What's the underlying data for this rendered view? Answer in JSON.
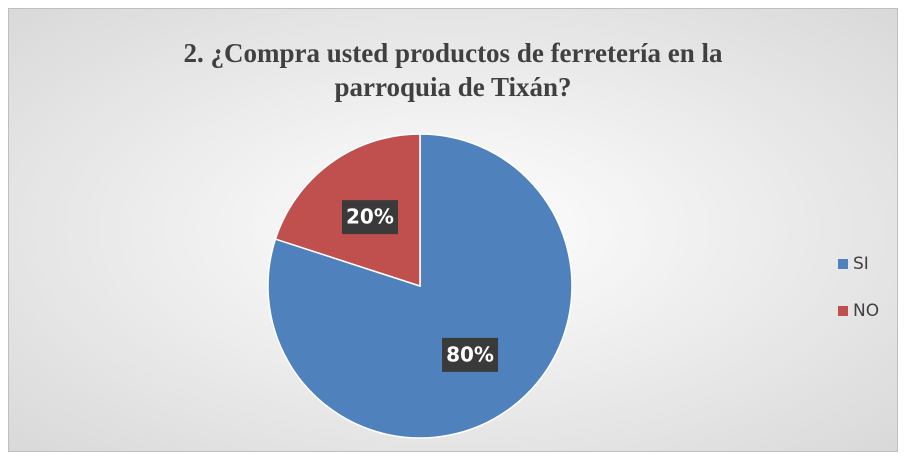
{
  "chart_data": {
    "type": "pie",
    "title": "2. ¿Compra usted productos de ferretería en la parroquia de Tixán?",
    "categories": [
      "SI",
      "NO"
    ],
    "values": [
      80,
      20
    ],
    "value_labels": [
      "80%",
      "20%"
    ],
    "colors": [
      "#4f81bd",
      "#c0504d"
    ],
    "legend": "right"
  }
}
